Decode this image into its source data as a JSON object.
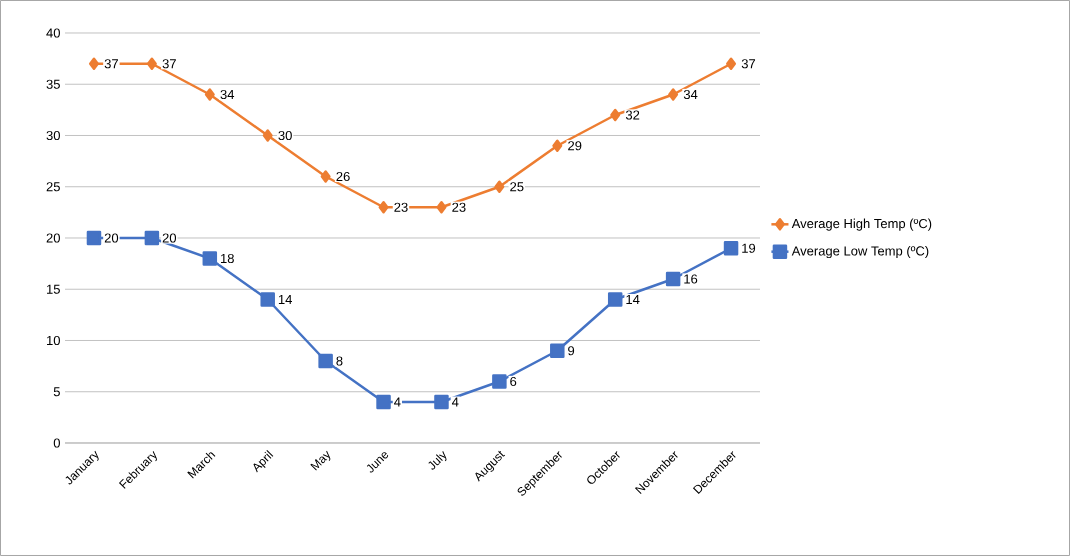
{
  "chart_data": {
    "type": "line",
    "categories": [
      "January",
      "February",
      "March",
      "April",
      "May",
      "June",
      "July",
      "August",
      "September",
      "October",
      "November",
      "December"
    ],
    "series": [
      {
        "name": "Average High Temp (ºC)",
        "color": "#ed7d31",
        "marker": "diamond",
        "values": [
          37,
          37,
          34,
          30,
          26,
          23,
          23,
          25,
          29,
          32,
          34,
          37
        ]
      },
      {
        "name": "Average Low Temp (ºC)",
        "color": "#4472c4",
        "marker": "square",
        "values": [
          20,
          20,
          18,
          14,
          8,
          4,
          4,
          6,
          9,
          14,
          16,
          19
        ]
      }
    ],
    "ylim": [
      0,
      40
    ],
    "yticks": [
      0,
      5,
      10,
      15,
      20,
      25,
      30,
      35,
      40
    ],
    "grid": "y",
    "legend": "right",
    "data_labels": true,
    "line_style": "solid"
  }
}
